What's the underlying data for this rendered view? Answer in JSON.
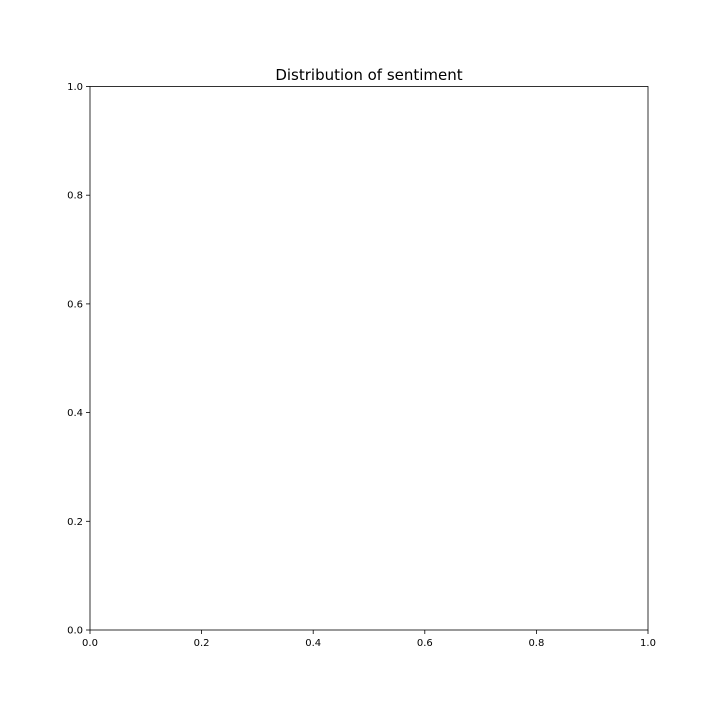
{
  "chart_data": {
    "type": "bar",
    "title": "Distribution of sentiment",
    "xlabel": "",
    "ylabel": "",
    "xlim": [
      0.0,
      1.0
    ],
    "ylim": [
      0.0,
      1.0
    ],
    "x_ticks": [
      "0.0",
      "0.2",
      "0.4",
      "0.6",
      "0.8",
      "1.0"
    ],
    "y_ticks": [
      "0.0",
      "0.2",
      "0.4",
      "0.6",
      "0.8",
      "1.0"
    ],
    "series": [],
    "grid": false,
    "legend": "none",
    "colors": {
      "axis": "#000000",
      "background": "#ffffff"
    }
  }
}
